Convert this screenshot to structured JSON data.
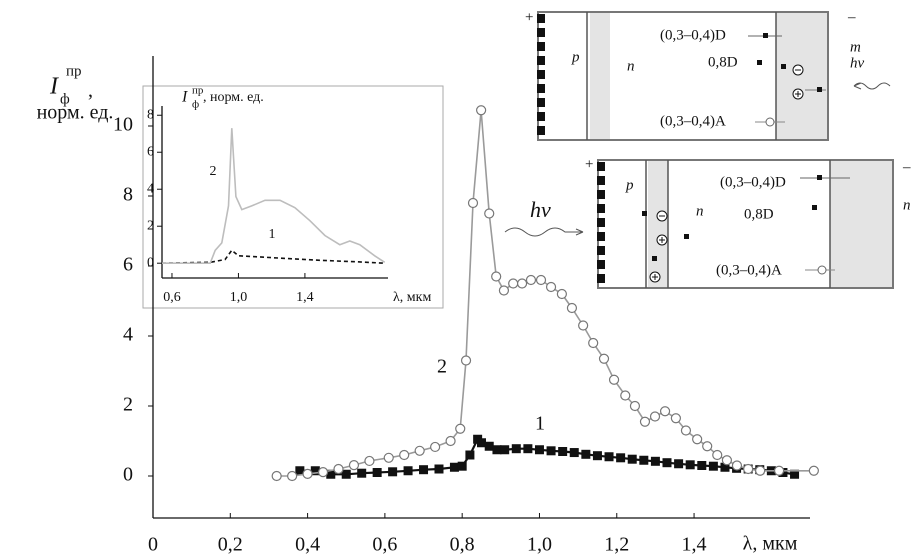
{
  "chart_data": [
    {
      "type": "line",
      "y_label": {
        "symbol": "I",
        "sup": "пр",
        "sub": "ф",
        "suffix": ",",
        "unit": "норм. ед."
      },
      "x_label": "λ, мкм",
      "annotation": "hν",
      "xlim": [
        0,
        1.7
      ],
      "ylim": [
        -1.2,
        12
      ],
      "xticks": [
        0,
        {
          "value": 0.2,
          "label": "0,2"
        },
        {
          "value": 0.4,
          "label": "0,4"
        },
        {
          "value": 0.6,
          "label": "0,6"
        },
        {
          "value": 0.8,
          "label": "0,8"
        },
        {
          "value": 1.0,
          "label": "1,0"
        },
        {
          "value": 1.2,
          "label": "1,2"
        },
        {
          "value": 1.4,
          "label": "1,4"
        }
      ],
      "yticks": [
        0,
        2,
        4,
        6,
        8,
        10
      ],
      "series": [
        {
          "name": "1",
          "color": "#111111",
          "marker": "square",
          "dash": false,
          "x": [
            0.38,
            0.42,
            0.46,
            0.5,
            0.54,
            0.58,
            0.62,
            0.66,
            0.7,
            0.74,
            0.78,
            0.8,
            0.82,
            0.84,
            0.85,
            0.87,
            0.89,
            0.91,
            0.94,
            0.97,
            1.0,
            1.03,
            1.06,
            1.09,
            1.12,
            1.15,
            1.18,
            1.21,
            1.24,
            1.27,
            1.3,
            1.33,
            1.36,
            1.39,
            1.42,
            1.45,
            1.48,
            1.51,
            1.54,
            1.57,
            1.6,
            1.63,
            1.66
          ],
          "values": [
            0.15,
            0.15,
            0.05,
            0.05,
            0.08,
            0.1,
            0.12,
            0.15,
            0.18,
            0.2,
            0.25,
            0.28,
            0.6,
            1.05,
            0.95,
            0.85,
            0.75,
            0.75,
            0.78,
            0.78,
            0.75,
            0.72,
            0.7,
            0.67,
            0.62,
            0.58,
            0.55,
            0.52,
            0.48,
            0.45,
            0.42,
            0.38,
            0.35,
            0.32,
            0.3,
            0.28,
            0.25,
            0.22,
            0.2,
            0.18,
            0.15,
            0.1,
            0.05
          ]
        },
        {
          "name": "2",
          "color": "#9a9a9a",
          "marker": "circle",
          "dash": false,
          "x": [
            0.32,
            0.36,
            0.4,
            0.44,
            0.48,
            0.52,
            0.56,
            0.61,
            0.65,
            0.69,
            0.73,
            0.77,
            0.795,
            0.81,
            0.828,
            0.849,
            0.87,
            0.888,
            0.908,
            0.932,
            0.955,
            0.978,
            1.004,
            1.03,
            1.058,
            1.084,
            1.113,
            1.139,
            1.167,
            1.193,
            1.222,
            1.247,
            1.273,
            1.299,
            1.325,
            1.353,
            1.379,
            1.408,
            1.434,
            1.46,
            1.485,
            1.511,
            1.54,
            1.571,
            1.62,
            1.71
          ],
          "values": [
            0,
            0,
            0.06,
            0.11,
            0.2,
            0.31,
            0.43,
            0.52,
            0.6,
            0.72,
            0.83,
            1.0,
            1.35,
            3.3,
            7.8,
            10.45,
            7.5,
            5.7,
            5.3,
            5.5,
            5.5,
            5.6,
            5.6,
            5.4,
            5.2,
            4.8,
            4.3,
            3.8,
            3.35,
            2.75,
            2.3,
            2.0,
            1.55,
            1.7,
            1.85,
            1.65,
            1.3,
            1.05,
            0.85,
            0.6,
            0.45,
            0.3,
            0.2,
            0.15,
            0.15,
            0.15
          ]
        }
      ]
    },
    {
      "type": "line",
      "y_label": {
        "symbol": "I",
        "sup": "пр",
        "sub": "ф",
        "suffix": ", норм. ед."
      },
      "x_label": "λ, мкм",
      "xlim": [
        0.54,
        1.9
      ],
      "ylim": [
        -0.8,
        8.5
      ],
      "xticks": [
        {
          "value": 0.6,
          "label": "0,6"
        },
        {
          "value": 1.0,
          "label": "1,0"
        },
        {
          "value": 1.4,
          "label": "1,4"
        }
      ],
      "yticks": [
        0,
        2,
        4,
        6,
        8
      ],
      "series": [
        {
          "name": "1",
          "color": "#111111",
          "marker": "none",
          "dash": true,
          "x": [
            0.54,
            0.83,
            0.92,
            0.96,
            1.0,
            1.1,
            1.3,
            1.5,
            1.7,
            1.88
          ],
          "values": [
            0,
            0.05,
            0.2,
            0.7,
            0.4,
            0.35,
            0.25,
            0.15,
            0.08,
            0
          ]
        },
        {
          "name": "2",
          "color": "#bdbdbd",
          "marker": "none",
          "dash": false,
          "x": [
            0.54,
            0.83,
            0.86,
            0.9,
            0.94,
            0.96,
            0.985,
            1.02,
            1.08,
            1.16,
            1.25,
            1.34,
            1.43,
            1.52,
            1.61,
            1.67,
            1.73,
            1.82,
            1.88
          ],
          "values": [
            0,
            0,
            0.7,
            1.1,
            3.1,
            7.3,
            3.6,
            2.9,
            3.1,
            3.4,
            3.4,
            3.0,
            2.3,
            1.5,
            1.0,
            1.2,
            1.0,
            0.4,
            0.05
          ]
        }
      ]
    }
  ],
  "diagrams": [
    {
      "plus": "+",
      "minus": "–",
      "p": "p",
      "n": "n",
      "donor_deep": "(0,3–0,4)D",
      "donor": "0,8D",
      "acceptor": "(0,3–0,4)A",
      "right": "m",
      "light": "hν"
    },
    {
      "plus": "+",
      "minus": "–",
      "p": "p",
      "n": "n",
      "donor_deep": "(0,3–0,4)D",
      "donor": "0,8D",
      "acceptor": "(0,3–0,4)A",
      "right": "n"
    }
  ]
}
